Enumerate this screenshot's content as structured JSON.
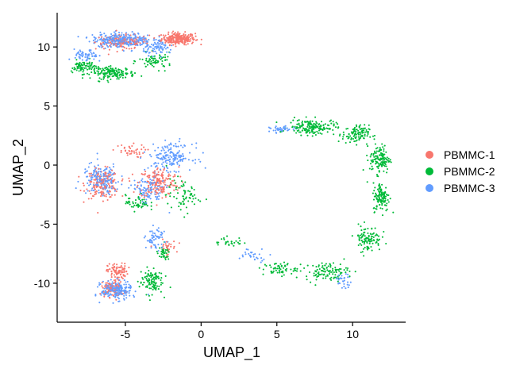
{
  "chart_data": {
    "type": "scatter",
    "title": "",
    "xlabel": "UMAP_1",
    "ylabel": "UMAP_2",
    "xlim": [
      -9.5,
      13.5
    ],
    "ylim": [
      -13.3,
      12.9
    ],
    "x_ticks": [
      -5,
      0,
      5,
      10
    ],
    "y_ticks": [
      -10,
      -5,
      0,
      5,
      10
    ],
    "x_tick_labels": [
      "-5",
      "0",
      "5",
      "10"
    ],
    "y_tick_labels": [
      "-10",
      "-5",
      "0",
      "5",
      "10"
    ],
    "grid": false,
    "legend_position": "right",
    "series": [
      {
        "name": "PBMMC-1",
        "color": "#F8766D",
        "clusters": [
          {
            "cx": -1.5,
            "cy": 10.7,
            "sx": 1.0,
            "sy": 0.45,
            "n": 260
          },
          {
            "cx": -5.2,
            "cy": 10.4,
            "sx": 1.6,
            "sy": 0.55,
            "n": 140
          },
          {
            "cx": -6.5,
            "cy": -1.6,
            "sx": 1.0,
            "sy": 1.1,
            "n": 170
          },
          {
            "cx": -2.8,
            "cy": -1.5,
            "sx": 1.2,
            "sy": 1.2,
            "n": 180
          },
          {
            "cx": -4.8,
            "cy": 1.2,
            "sx": 1.0,
            "sy": 0.5,
            "n": 40
          },
          {
            "cx": -5.5,
            "cy": -9.0,
            "sx": 0.6,
            "sy": 0.6,
            "n": 90
          },
          {
            "cx": -5.8,
            "cy": -10.4,
            "sx": 0.7,
            "sy": 0.7,
            "n": 80
          },
          {
            "cx": -2.3,
            "cy": -7.0,
            "sx": 0.6,
            "sy": 0.6,
            "n": 30
          }
        ]
      },
      {
        "name": "PBMMC-2",
        "color": "#00BA38",
        "clusters": [
          {
            "cx": -5.8,
            "cy": 7.8,
            "sx": 1.3,
            "sy": 0.45,
            "n": 160
          },
          {
            "cx": -7.8,
            "cy": 8.3,
            "sx": 0.7,
            "sy": 0.5,
            "n": 80
          },
          {
            "cx": -3.0,
            "cy": 8.8,
            "sx": 1.0,
            "sy": 0.6,
            "n": 70
          },
          {
            "cx": 7.3,
            "cy": 3.2,
            "sx": 1.4,
            "sy": 0.6,
            "n": 170
          },
          {
            "cx": 10.2,
            "cy": 2.6,
            "sx": 0.8,
            "sy": 0.7,
            "n": 110
          },
          {
            "cx": 11.8,
            "cy": 0.5,
            "sx": 0.6,
            "sy": 1.1,
            "n": 130
          },
          {
            "cx": 11.9,
            "cy": -2.7,
            "sx": 0.5,
            "sy": 1.1,
            "n": 120
          },
          {
            "cx": 11.0,
            "cy": -6.2,
            "sx": 0.8,
            "sy": 1.0,
            "n": 100
          },
          {
            "cx": 8.3,
            "cy": -9.0,
            "sx": 1.3,
            "sy": 0.7,
            "n": 110
          },
          {
            "cx": 5.2,
            "cy": -8.8,
            "sx": 1.0,
            "sy": 0.5,
            "n": 60
          },
          {
            "cx": -1.2,
            "cy": -2.6,
            "sx": 1.0,
            "sy": 1.3,
            "n": 70
          },
          {
            "cx": -3.3,
            "cy": -9.8,
            "sx": 0.7,
            "sy": 1.0,
            "n": 110
          },
          {
            "cx": -2.5,
            "cy": -7.5,
            "sx": 0.4,
            "sy": 0.5,
            "n": 40
          },
          {
            "cx": -4.2,
            "cy": -3.2,
            "sx": 0.7,
            "sy": 0.6,
            "n": 50
          },
          {
            "cx": 1.8,
            "cy": -6.5,
            "sx": 0.9,
            "sy": 0.4,
            "n": 30
          }
        ]
      },
      {
        "name": "PBMMC-3",
        "color": "#619CFF",
        "clusters": [
          {
            "cx": -5.2,
            "cy": 10.6,
            "sx": 1.8,
            "sy": 0.55,
            "n": 300
          },
          {
            "cx": -7.6,
            "cy": 9.2,
            "sx": 0.7,
            "sy": 0.5,
            "n": 60
          },
          {
            "cx": -2.8,
            "cy": 9.9,
            "sx": 0.9,
            "sy": 0.5,
            "n": 80
          },
          {
            "cx": -6.6,
            "cy": -1.2,
            "sx": 1.1,
            "sy": 1.2,
            "n": 170
          },
          {
            "cx": -2.0,
            "cy": 0.7,
            "sx": 1.3,
            "sy": 1.0,
            "n": 170
          },
          {
            "cx": -3.5,
            "cy": -2.2,
            "sx": 1.0,
            "sy": 1.1,
            "n": 100
          },
          {
            "cx": -5.6,
            "cy": -10.6,
            "sx": 0.9,
            "sy": 0.7,
            "n": 220
          },
          {
            "cx": -3.0,
            "cy": -6.2,
            "sx": 0.6,
            "sy": 0.8,
            "n": 60
          },
          {
            "cx": 5.3,
            "cy": 3.0,
            "sx": 0.7,
            "sy": 0.25,
            "n": 40
          },
          {
            "cx": 9.4,
            "cy": -9.8,
            "sx": 0.5,
            "sy": 0.5,
            "n": 30
          },
          {
            "cx": 3.5,
            "cy": -7.6,
            "sx": 1.0,
            "sy": 0.5,
            "n": 30
          }
        ]
      }
    ]
  }
}
